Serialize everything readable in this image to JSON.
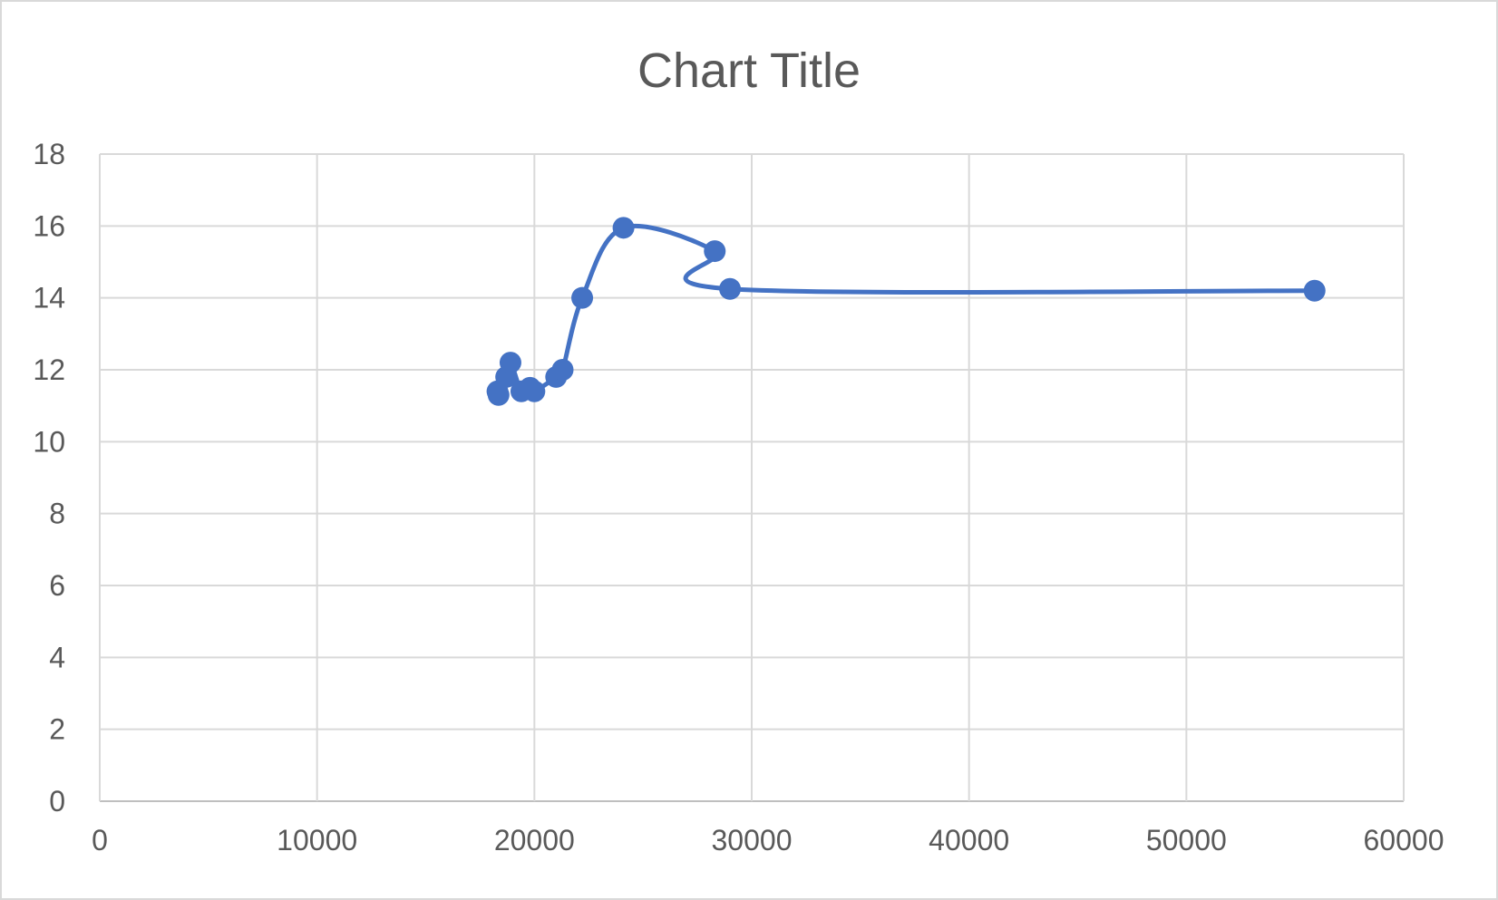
{
  "chart_data": {
    "type": "scatter",
    "title": "Chart Title",
    "xlabel": "",
    "ylabel": "",
    "xlim": [
      0,
      60000
    ],
    "ylim": [
      0,
      18
    ],
    "x_ticks": [
      "0",
      "10000",
      "20000",
      "30000",
      "40000",
      "50000",
      "60000"
    ],
    "y_ticks": [
      "0",
      "2",
      "4",
      "6",
      "8",
      "10",
      "12",
      "14",
      "16",
      "18"
    ],
    "grid": true,
    "legend": "none",
    "line_style": "smooth",
    "series": [
      {
        "color": "#4472c4",
        "points": [
          {
            "x": 18300,
            "y": 11.4
          },
          {
            "x": 18350,
            "y": 11.3
          },
          {
            "x": 18700,
            "y": 11.8
          },
          {
            "x": 18900,
            "y": 12.2
          },
          {
            "x": 19400,
            "y": 11.4
          },
          {
            "x": 19800,
            "y": 11.5
          },
          {
            "x": 20000,
            "y": 11.4
          },
          {
            "x": 21000,
            "y": 11.8
          },
          {
            "x": 21300,
            "y": 12.0
          },
          {
            "x": 22200,
            "y": 14.0
          },
          {
            "x": 24100,
            "y": 15.95
          },
          {
            "x": 28300,
            "y": 15.3
          },
          {
            "x": 29000,
            "y": 14.25
          },
          {
            "x": 55900,
            "y": 14.2
          }
        ]
      }
    ]
  }
}
